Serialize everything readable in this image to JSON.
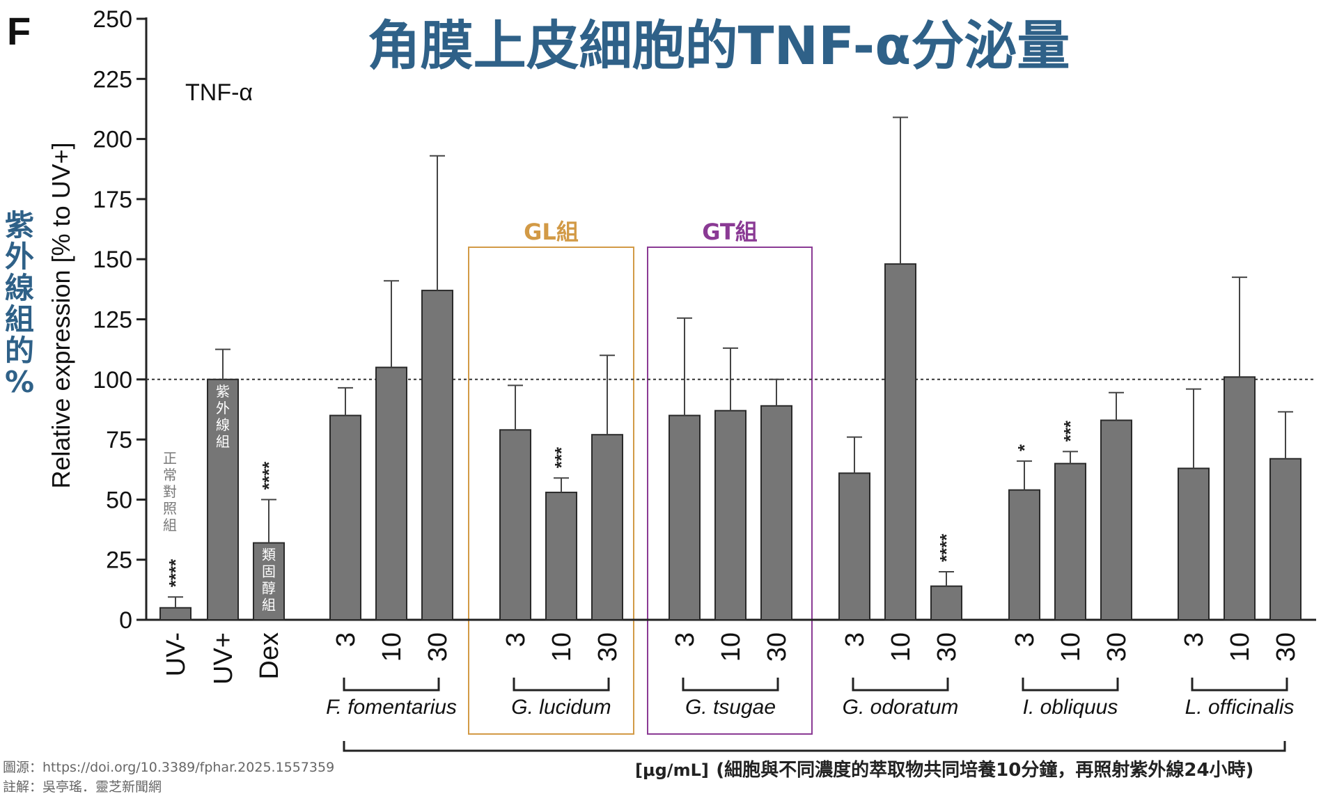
{
  "panel_letter": "F",
  "title": "角膜上皮細胞的TNF-α分泌量",
  "side_label": "紫外線組的%",
  "annotation_label": "TNF-α",
  "box_labels": {
    "gl": {
      "text": "GL組",
      "color": "#d29a46"
    },
    "gt": {
      "text": "GT組",
      "color": "#8a3a94"
    }
  },
  "units_note": {
    "prefix": "[µg/mL]",
    "text": "(細胞與不同濃度的萃取物共同培養10分鐘，再照射紫外線24小時)"
  },
  "source_lines": [
    "圖源：https://doi.org/10.3389/fphar.2025.1557359",
    "註解：吳亭瑤．靈芝新聞網"
  ],
  "colors": {
    "bar": "#767676",
    "bar_edge": "#2a2a2a",
    "title": "#2f6188",
    "axis": "#222222"
  },
  "chart_data": {
    "type": "bar",
    "title": "TNF-α",
    "ylabel": "Relative expression [% to UV+]",
    "xlabel": "[µg/mL]",
    "ylim": [
      0,
      250
    ],
    "yticks": [
      0,
      25,
      50,
      75,
      100,
      125,
      150,
      175,
      200,
      225,
      250
    ],
    "reference_line": 100,
    "grid": false,
    "legend": "none",
    "controls": [
      {
        "label": "UV-",
        "value": 5,
        "error": 4.5,
        "sig": "****",
        "note": "正常對照組"
      },
      {
        "label": "UV+",
        "value": 100,
        "error": 12.5,
        "sig": "",
        "note": "紫外線組"
      },
      {
        "label": "Dex",
        "value": 32,
        "error": 18,
        "sig": "****",
        "note": "類固醇組"
      }
    ],
    "groups": [
      {
        "name": "F. fomentarius",
        "doses": [
          "3",
          "10",
          "30"
        ],
        "values": [
          85,
          105,
          137
        ],
        "errors": [
          11.5,
          36,
          56
        ],
        "sig": [
          "",
          "",
          ""
        ]
      },
      {
        "name": "G. lucidum",
        "doses": [
          "3",
          "10",
          "30"
        ],
        "values": [
          79,
          53,
          77
        ],
        "errors": [
          18.5,
          6,
          33
        ],
        "sig": [
          "",
          "***",
          ""
        ]
      },
      {
        "name": "G. tsugae",
        "doses": [
          "3",
          "10",
          "30"
        ],
        "values": [
          85,
          87,
          89
        ],
        "errors": [
          40.5,
          26,
          11
        ],
        "sig": [
          "",
          "",
          ""
        ]
      },
      {
        "name": "G. odoratum",
        "doses": [
          "3",
          "10",
          "30"
        ],
        "values": [
          61,
          148,
          14
        ],
        "errors": [
          15,
          61,
          6
        ],
        "sig": [
          "",
          "",
          "****"
        ]
      },
      {
        "name": "I. obliquus",
        "doses": [
          "3",
          "10",
          "30"
        ],
        "values": [
          54,
          65,
          83
        ],
        "errors": [
          12,
          5,
          11.5
        ],
        "sig": [
          "*",
          "***",
          ""
        ]
      },
      {
        "name": "L. officinalis",
        "doses": [
          "3",
          "10",
          "30"
        ],
        "values": [
          63,
          101,
          67
        ],
        "errors": [
          33,
          41.5,
          19.5
        ],
        "sig": [
          "",
          "",
          ""
        ]
      }
    ]
  }
}
